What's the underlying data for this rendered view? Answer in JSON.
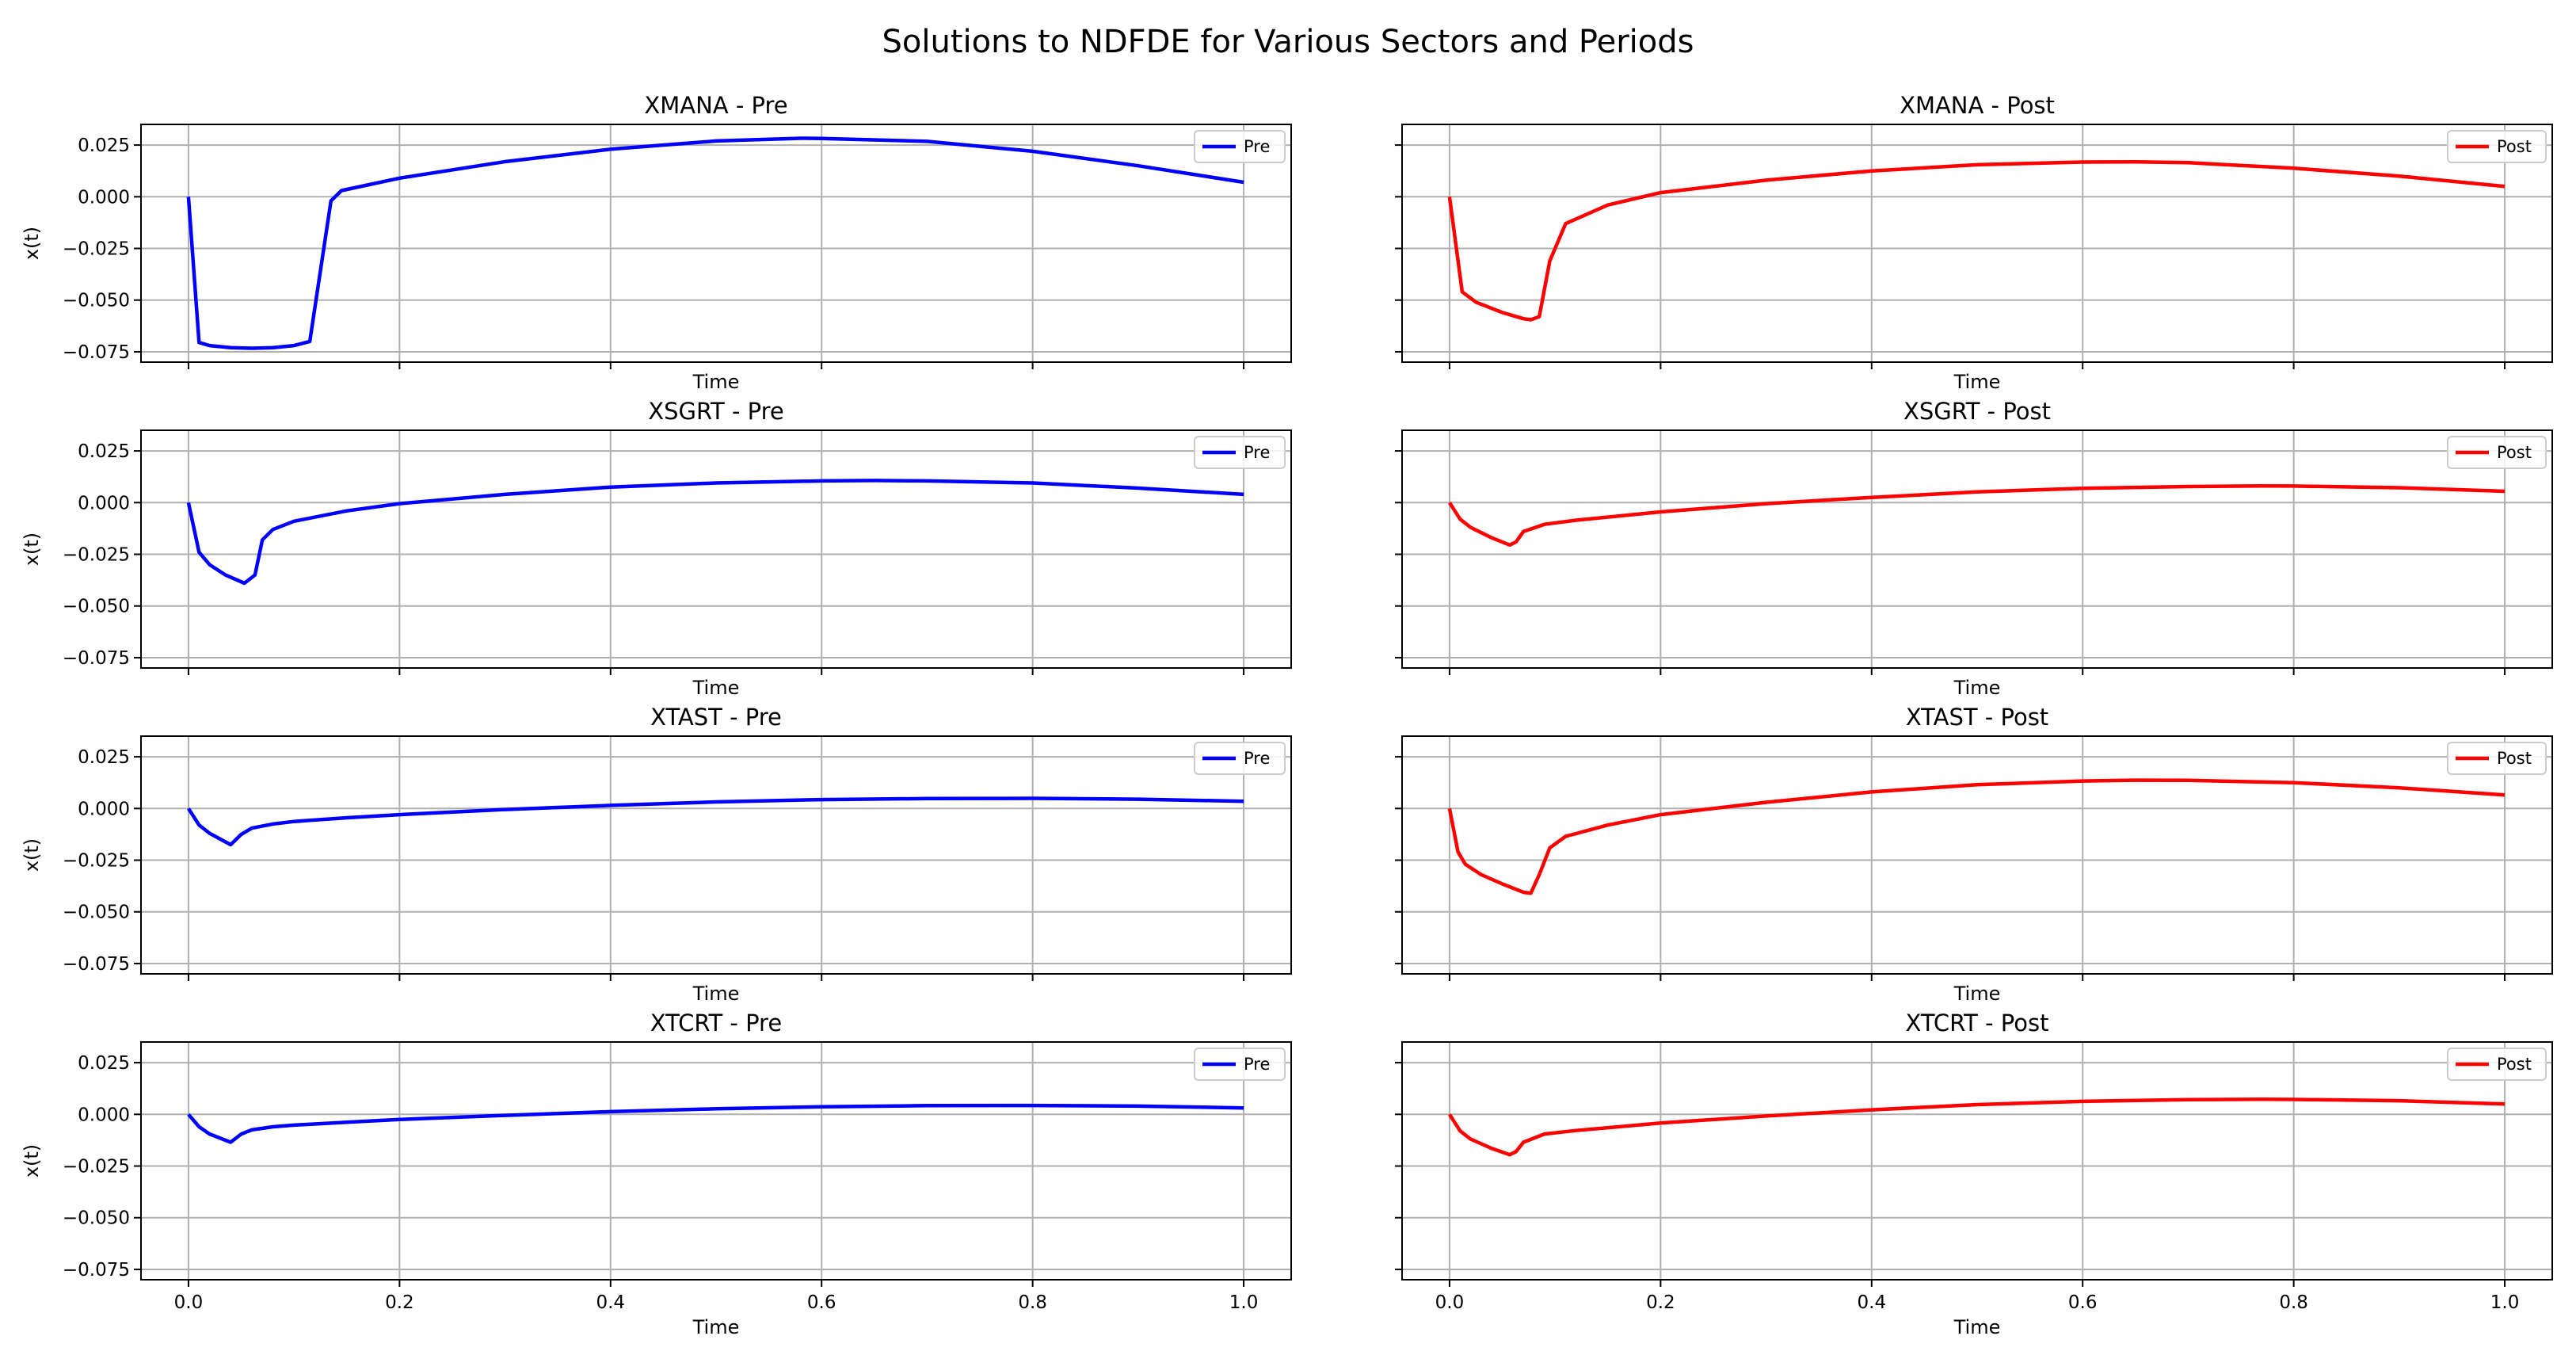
{
  "figure": {
    "suptitle": "Solutions to NDFDE for Various Sectors and Periods"
  },
  "colors": {
    "pre": "#0000ff",
    "post": "#ff0000",
    "grid": "#b0b0b0"
  },
  "chart_data": [
    {
      "type": "line",
      "title": "XMANA - Pre",
      "xlabel": "Time",
      "ylabel": "x(t)",
      "legend": "Pre",
      "legend_loc": "top-right",
      "color": "#0000ff",
      "grid": true,
      "xlim": [
        0,
        1
      ],
      "ylim": [
        -0.08,
        0.035
      ],
      "xticks": [
        0,
        0.2,
        0.4,
        0.6,
        0.8,
        1.0
      ],
      "yticks": [
        0.025,
        0,
        -0.025,
        -0.05,
        -0.075
      ],
      "x": [
        0,
        0.01,
        0.02,
        0.04,
        0.06,
        0.08,
        0.1,
        0.115,
        0.135,
        0.145,
        0.2,
        0.3,
        0.4,
        0.5,
        0.58,
        0.6,
        0.7,
        0.8,
        0.9,
        1.0
      ],
      "y": [
        0,
        -0.0705,
        -0.072,
        -0.073,
        -0.0733,
        -0.073,
        -0.072,
        -0.07,
        -0.002,
        0.003,
        0.009,
        0.017,
        0.023,
        0.027,
        0.0283,
        0.0282,
        0.0268,
        0.022,
        0.015,
        0.007
      ]
    },
    {
      "type": "line",
      "title": "XMANA - Post",
      "xlabel": "Time",
      "ylabel": "",
      "legend": "Post",
      "legend_loc": "top-right",
      "color": "#ff0000",
      "grid": true,
      "xlim": [
        0,
        1
      ],
      "ylim": [
        -0.08,
        0.035
      ],
      "xticks": [
        0,
        0.2,
        0.4,
        0.6,
        0.8,
        1.0
      ],
      "yticks": [
        0.025,
        0,
        -0.025,
        -0.05,
        -0.075
      ],
      "x": [
        0,
        0.012,
        0.025,
        0.05,
        0.07,
        0.077,
        0.085,
        0.095,
        0.11,
        0.15,
        0.2,
        0.3,
        0.4,
        0.5,
        0.6,
        0.65,
        0.7,
        0.8,
        0.9,
        1.0
      ],
      "y": [
        0,
        -0.046,
        -0.051,
        -0.056,
        -0.059,
        -0.0595,
        -0.058,
        -0.031,
        -0.013,
        -0.004,
        0.002,
        0.008,
        0.0125,
        0.0155,
        0.0168,
        0.0169,
        0.0165,
        0.0138,
        0.01,
        0.005
      ]
    },
    {
      "type": "line",
      "title": "XSGRT - Pre",
      "xlabel": "Time",
      "ylabel": "x(t)",
      "legend": "Pre",
      "legend_loc": "top-right",
      "color": "#0000ff",
      "grid": true,
      "xlim": [
        0,
        1
      ],
      "ylim": [
        -0.08,
        0.035
      ],
      "xticks": [
        0,
        0.2,
        0.4,
        0.6,
        0.8,
        1.0
      ],
      "yticks": [
        0.025,
        0,
        -0.025,
        -0.05,
        -0.075
      ],
      "x": [
        0,
        0.01,
        0.02,
        0.035,
        0.053,
        0.063,
        0.07,
        0.08,
        0.1,
        0.15,
        0.2,
        0.3,
        0.4,
        0.5,
        0.6,
        0.65,
        0.7,
        0.8,
        0.9,
        1.0
      ],
      "y": [
        0,
        -0.024,
        -0.03,
        -0.035,
        -0.039,
        -0.035,
        -0.018,
        -0.013,
        -0.009,
        -0.004,
        -0.0005,
        0.004,
        0.0075,
        0.0095,
        0.0105,
        0.0107,
        0.0105,
        0.0095,
        0.007,
        0.004
      ]
    },
    {
      "type": "line",
      "title": "XSGRT - Post",
      "xlabel": "Time",
      "ylabel": "",
      "legend": "Post",
      "legend_loc": "top-right",
      "color": "#ff0000",
      "grid": true,
      "xlim": [
        0,
        1
      ],
      "ylim": [
        -0.08,
        0.035
      ],
      "xticks": [
        0,
        0.2,
        0.4,
        0.6,
        0.8,
        1.0
      ],
      "yticks": [
        0.025,
        0,
        -0.025,
        -0.05,
        -0.075
      ],
      "x": [
        0,
        0.01,
        0.02,
        0.04,
        0.057,
        0.063,
        0.07,
        0.09,
        0.12,
        0.2,
        0.3,
        0.4,
        0.5,
        0.6,
        0.7,
        0.77,
        0.8,
        0.9,
        1.0
      ],
      "y": [
        0,
        -0.008,
        -0.012,
        -0.017,
        -0.0205,
        -0.019,
        -0.014,
        -0.0105,
        -0.0085,
        -0.0045,
        -0.0005,
        0.0025,
        0.0052,
        0.0069,
        0.0078,
        0.0081,
        0.008,
        0.0072,
        0.0055
      ]
    },
    {
      "type": "line",
      "title": "XTAST - Pre",
      "xlabel": "Time",
      "ylabel": "x(t)",
      "legend": "Pre",
      "legend_loc": "top-right",
      "color": "#0000ff",
      "grid": true,
      "xlim": [
        0,
        1
      ],
      "ylim": [
        -0.08,
        0.035
      ],
      "xticks": [
        0,
        0.2,
        0.4,
        0.6,
        0.8,
        1.0
      ],
      "yticks": [
        0.025,
        0,
        -0.025,
        -0.05,
        -0.075
      ],
      "x": [
        0,
        0.01,
        0.02,
        0.04,
        0.05,
        0.06,
        0.08,
        0.1,
        0.15,
        0.2,
        0.3,
        0.4,
        0.5,
        0.6,
        0.7,
        0.8,
        0.9,
        1.0
      ],
      "y": [
        0,
        -0.008,
        -0.012,
        -0.0175,
        -0.0125,
        -0.0095,
        -0.0075,
        -0.0063,
        -0.0045,
        -0.003,
        -0.0005,
        0.0015,
        0.0032,
        0.0043,
        0.0048,
        0.0049,
        0.0045,
        0.0035
      ]
    },
    {
      "type": "line",
      "title": "XTAST - Post",
      "xlabel": "Time",
      "ylabel": "",
      "legend": "Post",
      "legend_loc": "top-right",
      "color": "#ff0000",
      "grid": true,
      "xlim": [
        0,
        1
      ],
      "ylim": [
        -0.08,
        0.035
      ],
      "xticks": [
        0,
        0.2,
        0.4,
        0.6,
        0.8,
        1.0
      ],
      "yticks": [
        0.025,
        0,
        -0.025,
        -0.05,
        -0.075
      ],
      "x": [
        0,
        0.008,
        0.015,
        0.03,
        0.05,
        0.07,
        0.077,
        0.085,
        0.095,
        0.11,
        0.15,
        0.2,
        0.3,
        0.4,
        0.5,
        0.6,
        0.65,
        0.7,
        0.8,
        0.9,
        1.0
      ],
      "y": [
        0,
        -0.021,
        -0.027,
        -0.032,
        -0.0365,
        -0.0405,
        -0.041,
        -0.032,
        -0.019,
        -0.0135,
        -0.008,
        -0.003,
        0.003,
        0.008,
        0.0115,
        0.0133,
        0.0137,
        0.0136,
        0.0125,
        0.01,
        0.0065
      ]
    },
    {
      "type": "line",
      "title": "XTCRT - Pre",
      "xlabel": "Time",
      "ylabel": "x(t)",
      "legend": "Pre",
      "legend_loc": "top-right",
      "color": "#0000ff",
      "grid": true,
      "xlim": [
        0,
        1
      ],
      "ylim": [
        -0.08,
        0.035
      ],
      "xticks": [
        0,
        0.2,
        0.4,
        0.6,
        0.8,
        1.0
      ],
      "yticks": [
        0.025,
        0,
        -0.025,
        -0.05,
        -0.075
      ],
      "x": [
        0,
        0.01,
        0.02,
        0.04,
        0.05,
        0.06,
        0.08,
        0.1,
        0.15,
        0.2,
        0.3,
        0.4,
        0.5,
        0.6,
        0.7,
        0.8,
        0.9,
        1.0
      ],
      "y": [
        0,
        -0.006,
        -0.0095,
        -0.0135,
        -0.0095,
        -0.0075,
        -0.006,
        -0.0052,
        -0.0038,
        -0.0025,
        -0.0005,
        0.0013,
        0.0027,
        0.0037,
        0.0042,
        0.0043,
        0.004,
        0.0031
      ]
    },
    {
      "type": "line",
      "title": "XTCRT - Post",
      "xlabel": "Time",
      "ylabel": "",
      "legend": "Post",
      "legend_loc": "top-right",
      "color": "#ff0000",
      "grid": true,
      "xlim": [
        0,
        1
      ],
      "ylim": [
        -0.08,
        0.035
      ],
      "xticks": [
        0,
        0.2,
        0.4,
        0.6,
        0.8,
        1.0
      ],
      "yticks": [
        0.025,
        0,
        -0.025,
        -0.05,
        -0.075
      ],
      "x": [
        0,
        0.01,
        0.02,
        0.04,
        0.057,
        0.063,
        0.07,
        0.09,
        0.12,
        0.2,
        0.3,
        0.4,
        0.5,
        0.6,
        0.7,
        0.77,
        0.8,
        0.9,
        1.0
      ],
      "y": [
        0,
        -0.008,
        -0.012,
        -0.0165,
        -0.0195,
        -0.018,
        -0.0135,
        -0.0095,
        -0.0078,
        -0.0042,
        -0.0008,
        0.0022,
        0.0047,
        0.0063,
        0.0071,
        0.0073,
        0.0072,
        0.0066,
        0.005
      ]
    }
  ]
}
